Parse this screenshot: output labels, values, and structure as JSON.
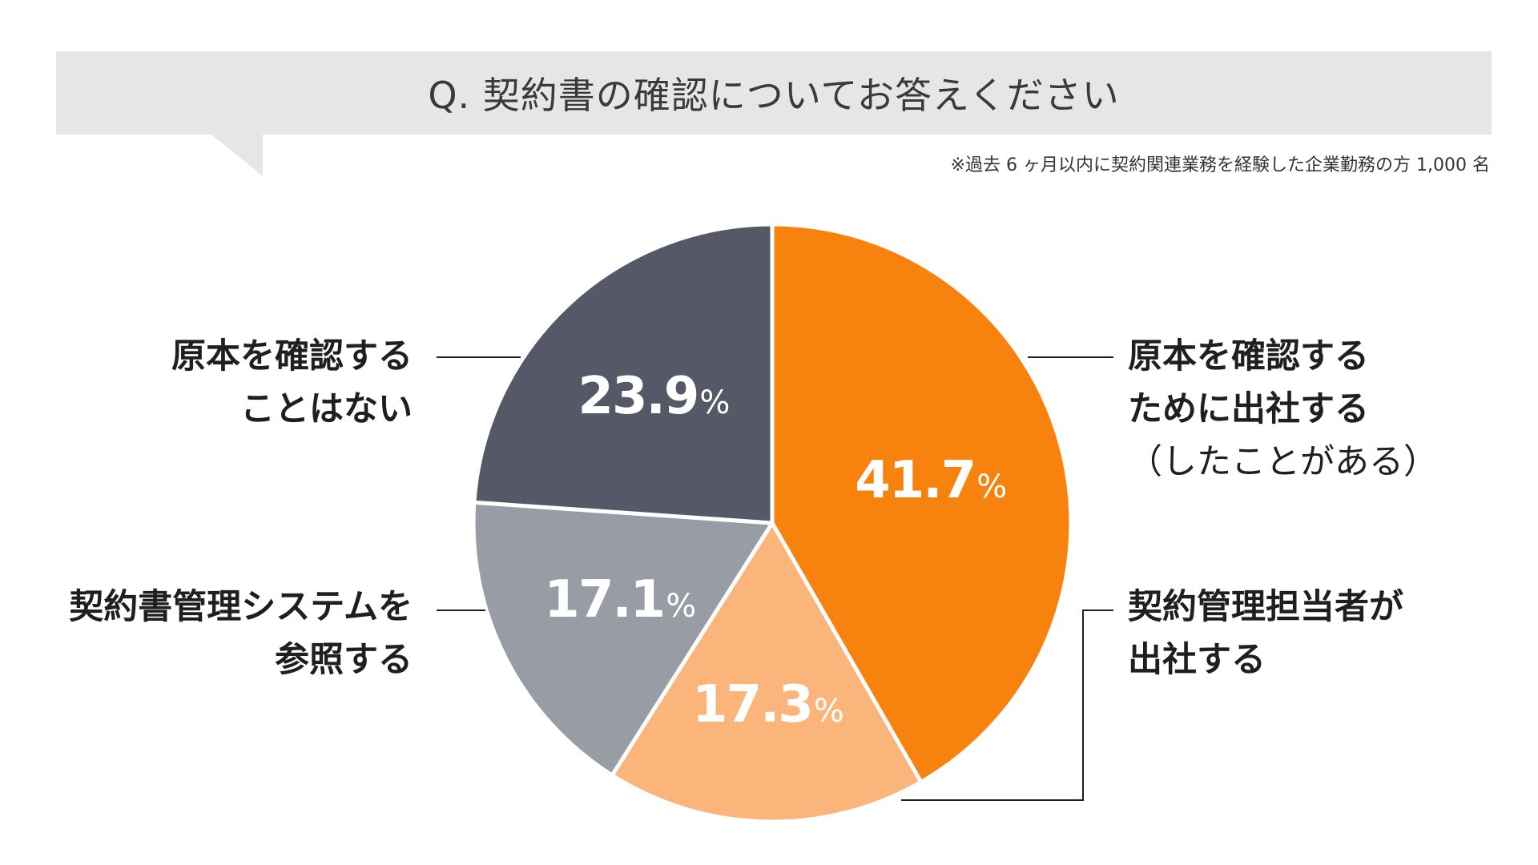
{
  "question": "Q. 契約書の確認についてお答えください",
  "note": "※過去 6 ヶ月以内に契約関連業務を経験した企業勤務の方 1,000 名",
  "chart_data": {
    "type": "pie",
    "unit": "%",
    "slices": [
      {
        "label_lines": [
          "原本を確認する",
          "ために出社する"
        ],
        "label_sub": "（したことがある）",
        "value": 41.7,
        "value_text": "41.7",
        "color": "#f7820d"
      },
      {
        "label_lines": [
          "契約管理担当者が",
          "出社する"
        ],
        "label_sub": "",
        "value": 17.3,
        "value_text": "17.3",
        "color": "#fbb47a"
      },
      {
        "label_lines": [
          "契約書管理システムを",
          "参照する"
        ],
        "label_sub": "",
        "value": 17.1,
        "value_text": "17.1",
        "color": "#989ca4"
      },
      {
        "label_lines": [
          "原本を確認する",
          "ことはない"
        ],
        "label_sub": "",
        "value": 23.9,
        "value_text": "23.9",
        "color": "#555866"
      }
    ]
  }
}
